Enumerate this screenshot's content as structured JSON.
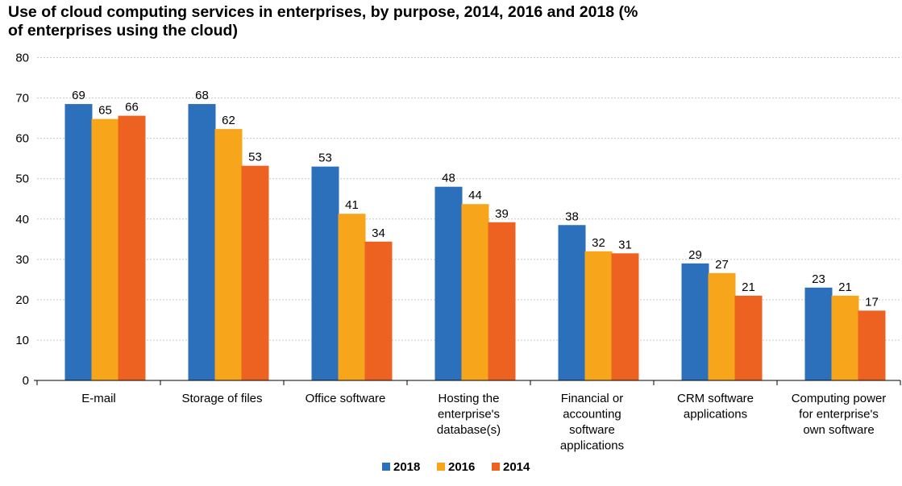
{
  "chart_data": {
    "type": "bar",
    "title_lines": [
      "Use of cloud computing services in enterprises, by purpose, 2014, 2016 and 2018 (%",
      "of enterprises using the cloud)"
    ],
    "xlabel": "",
    "ylabel": "",
    "ylim": [
      0,
      80
    ],
    "yticks": [
      0,
      10,
      20,
      30,
      40,
      50,
      60,
      70,
      80
    ],
    "grid": true,
    "legend_position": "bottom",
    "categories": [
      [
        "E-mail"
      ],
      [
        "Storage of files"
      ],
      [
        "Office software"
      ],
      [
        "Hosting the",
        "enterprise's",
        "database(s)"
      ],
      [
        "Financial or",
        "accounting",
        "software",
        "applications"
      ],
      [
        "CRM software",
        "applications"
      ],
      [
        "Computing power",
        "for enterprise's",
        "own software"
      ]
    ],
    "series": [
      {
        "name": "2018",
        "color": "#2c6fbb",
        "values": [
          68.5,
          68.5,
          53,
          48,
          38.5,
          29,
          23
        ],
        "labels": [
          "69",
          "68",
          "53",
          "48",
          "38",
          "29",
          "23"
        ]
      },
      {
        "name": "2016",
        "color": "#f7a51b",
        "values": [
          64.8,
          62.3,
          41.3,
          43.7,
          32,
          26.6,
          21
        ],
        "labels": [
          "65",
          "62",
          "41",
          "44",
          "32",
          "27",
          "21"
        ]
      },
      {
        "name": "2014",
        "color": "#ee6221",
        "values": [
          65.6,
          53.2,
          34.4,
          39.2,
          31.5,
          21,
          17.3
        ],
        "labels": [
          "66",
          "53",
          "34",
          "39",
          "31",
          "21",
          "17"
        ]
      }
    ]
  }
}
